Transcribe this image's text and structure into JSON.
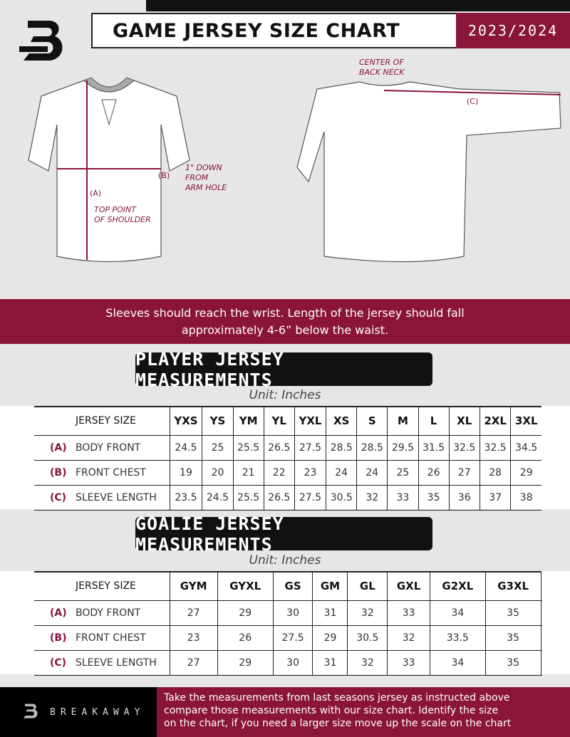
{
  "header": {
    "title": "GAME JERSEY SIZE CHART",
    "season": "2023/2024",
    "logo_icon": "breakaway-b-logo"
  },
  "diagram": {
    "front_notes": {
      "b": "(B)",
      "b_note": [
        "1\" DOWN",
        "FROM",
        "ARM HOLE"
      ],
      "a": "(A)",
      "a_note": [
        "TOP POINT",
        "OF SHOULDER"
      ]
    },
    "back_notes": {
      "center": [
        "CENTER OF",
        "BACK NECK"
      ],
      "c": "(C)"
    }
  },
  "instructions": [
    "Sleeves should reach the wrist. Length of the jersey should fall",
    "approximately 4-6” below the waist."
  ],
  "player": {
    "title": "PLAYER JERSEY MEASUREMENTS",
    "unit": "Unit: Inches",
    "header": "JERSEY SIZE",
    "sizes": [
      "YXS",
      "YS",
      "YM",
      "YL",
      "YXL",
      "XS",
      "S",
      "M",
      "L",
      "XL",
      "2XL",
      "3XL"
    ],
    "rows": [
      {
        "letter": "(A)",
        "label": "BODY FRONT",
        "values": [
          "24.5",
          "25",
          "25.5",
          "26.5",
          "27.5",
          "28.5",
          "28.5",
          "29.5",
          "31.5",
          "32.5",
          "32.5",
          "34.5"
        ]
      },
      {
        "letter": "(B)",
        "label": "FRONT CHEST",
        "values": [
          "19",
          "20",
          "21",
          "22",
          "23",
          "24",
          "24",
          "25",
          "26",
          "27",
          "28",
          "29"
        ]
      },
      {
        "letter": "(C)",
        "label": "SLEEVE LENGTH",
        "values": [
          "23.5",
          "24.5",
          "25.5",
          "26.5",
          "27.5",
          "30.5",
          "32",
          "33",
          "35",
          "36",
          "37",
          "38"
        ]
      }
    ]
  },
  "goalie": {
    "title": "GOALIE JERSEY MEASUREMENTS",
    "unit": "Unit: Inches",
    "header": "JERSEY SIZE",
    "sizes": [
      "GYM",
      "GYXL",
      "GS",
      "GM",
      "GL",
      "GXL",
      "G2XL",
      "G3XL",
      ""
    ],
    "rows": [
      {
        "letter": "(A)",
        "label": "BODY FRONT",
        "values": [
          "27",
          "29",
          "30",
          "31",
          "32",
          "33",
          "34",
          "35",
          ""
        ]
      },
      {
        "letter": "(B)",
        "label": "FRONT CHEST",
        "values": [
          "23",
          "26",
          "27.5",
          "29",
          "30.5",
          "32",
          "33.5",
          "35",
          ""
        ]
      },
      {
        "letter": "(C)",
        "label": "SLEEVE LENGTH",
        "values": [
          "27",
          "29",
          "30",
          "31",
          "32",
          "33",
          "34",
          "35",
          ""
        ]
      }
    ]
  },
  "footer": {
    "brand": "BREAKAWAY",
    "text": [
      "Take the measurements from last seasons jersey as instructed above",
      "compare those measurements  with our size chart. Identify the size",
      "on the chart, if you need a larger size move up the scale on the chart"
    ]
  },
  "colors": {
    "accent": "#8a1538",
    "dark": "#111111",
    "background": "#e6e6e7"
  }
}
